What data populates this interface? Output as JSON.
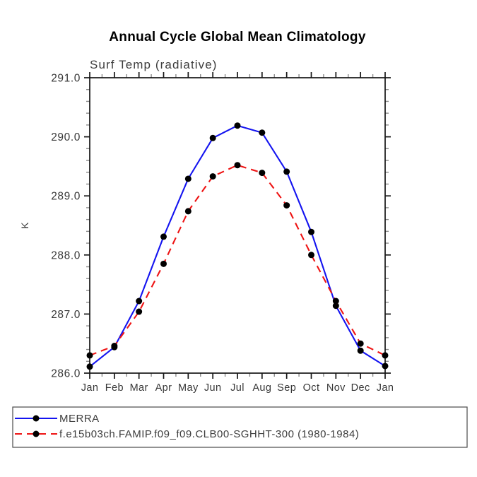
{
  "chart_data": {
    "type": "line",
    "title": "Annual Cycle Global Mean Climatology",
    "subtitle": "Surf Temp (radiative)",
    "ylabel": "K",
    "categories": [
      "Jan",
      "Feb",
      "Mar",
      "Apr",
      "May",
      "Jun",
      "Jul",
      "Aug",
      "Sep",
      "Oct",
      "Nov",
      "Dec",
      "Jan"
    ],
    "ylim": [
      286.0,
      291.0
    ],
    "ytick_step": 1.0,
    "ytick_minor_step": 0.2,
    "ytick_labels": [
      "286.0",
      "287.0",
      "288.0",
      "289.0",
      "290.0",
      "291.0"
    ],
    "grid": false,
    "legend_position": "bottom-left",
    "axis_color": "#161616",
    "series": [
      {
        "name": "MERRA",
        "color": "#1414f0",
        "line_style": "solid",
        "marker": "filled-circle",
        "marker_color": "#000000",
        "values": [
          286.11,
          286.44,
          287.22,
          288.31,
          289.29,
          289.98,
          290.19,
          290.07,
          289.41,
          288.39,
          287.14,
          286.38,
          286.12
        ]
      },
      {
        "name": "f.e15b03ch.FAMIP.f09_f09.CLB00-SGHHT-300 (1980-1984)",
        "color": "#ee1414",
        "line_style": "dashed",
        "marker": "filled-circle",
        "marker_color": "#000000",
        "values": [
          286.3,
          286.46,
          287.04,
          287.85,
          288.74,
          289.33,
          289.52,
          289.39,
          288.84,
          288.0,
          287.22,
          286.5,
          286.3
        ]
      }
    ]
  }
}
